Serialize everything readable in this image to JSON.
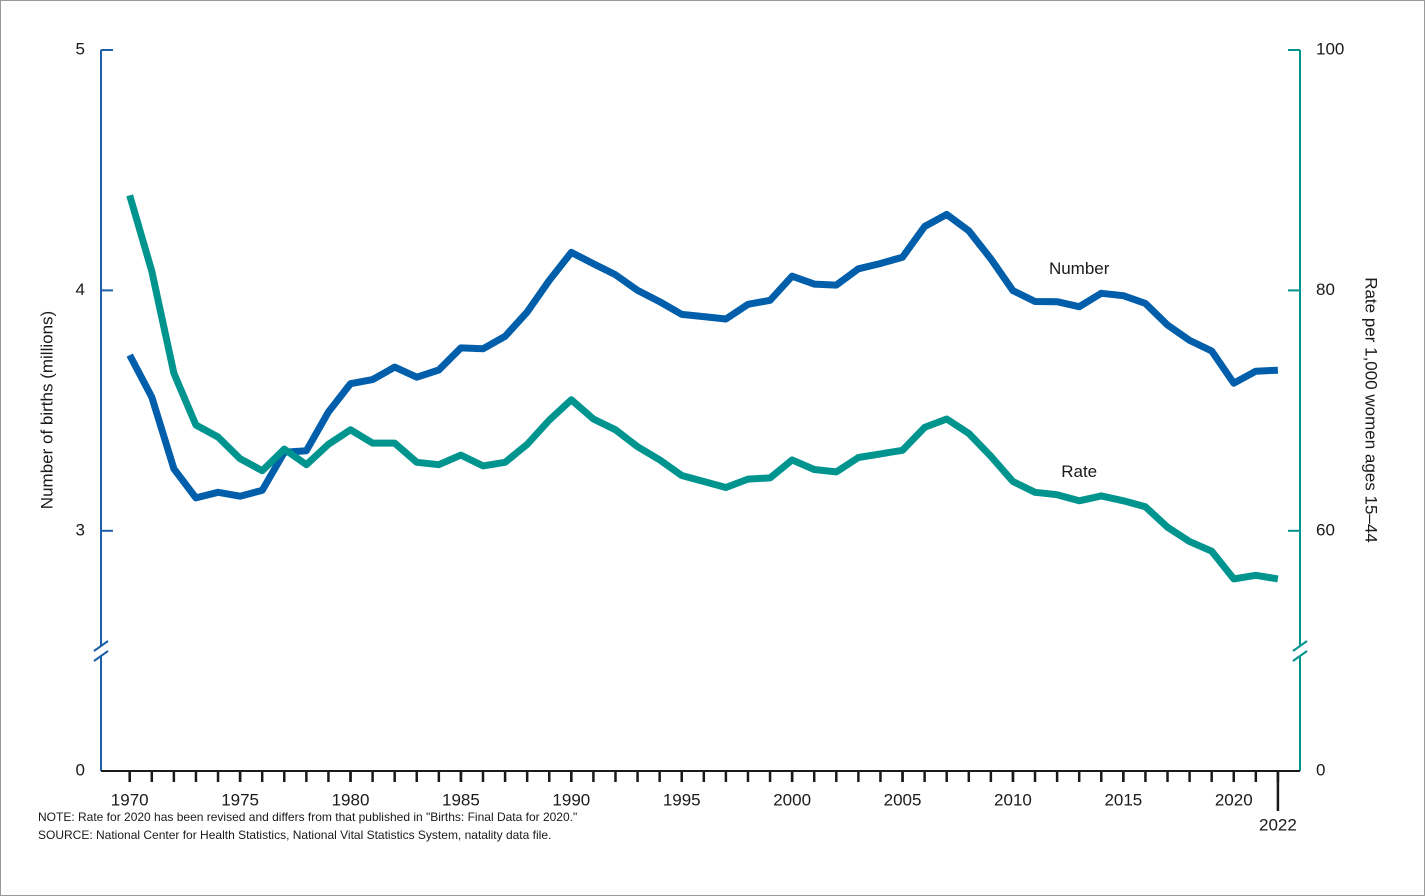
{
  "chart_data": {
    "type": "line",
    "x": [
      1970,
      1971,
      1972,
      1973,
      1974,
      1975,
      1976,
      1977,
      1978,
      1979,
      1980,
      1981,
      1982,
      1983,
      1984,
      1985,
      1986,
      1987,
      1988,
      1989,
      1990,
      1991,
      1992,
      1993,
      1994,
      1995,
      1996,
      1997,
      1998,
      1999,
      2000,
      2001,
      2002,
      2003,
      2004,
      2005,
      2006,
      2007,
      2008,
      2009,
      2010,
      2011,
      2012,
      2013,
      2014,
      2015,
      2016,
      2017,
      2018,
      2019,
      2020,
      2021,
      2022
    ],
    "series": [
      {
        "name": "Number",
        "color": "#005eaa",
        "values": [
          3.731,
          3.556,
          3.258,
          3.137,
          3.16,
          3.144,
          3.168,
          3.327,
          3.333,
          3.494,
          3.612,
          3.629,
          3.681,
          3.639,
          3.669,
          3.761,
          3.757,
          3.809,
          3.91,
          4.041,
          4.158,
          4.111,
          4.065,
          4.0,
          3.953,
          3.9,
          3.891,
          3.881,
          3.942,
          3.959,
          4.059,
          4.026,
          4.022,
          4.09,
          4.112,
          4.138,
          4.266,
          4.316,
          4.248,
          4.131,
          3.999,
          3.954,
          3.953,
          3.932,
          3.988,
          3.978,
          3.946,
          3.856,
          3.792,
          3.748,
          3.614,
          3.664,
          3.668
        ]
      },
      {
        "name": "Rate",
        "color": "#00948f",
        "axis": "y2",
        "values": [
          87.9,
          81.6,
          73.1,
          68.8,
          67.8,
          66.0,
          65.0,
          66.8,
          65.5,
          67.2,
          68.4,
          67.3,
          67.3,
          65.7,
          65.5,
          66.3,
          65.4,
          65.7,
          67.2,
          69.2,
          70.9,
          69.3,
          68.4,
          67.0,
          65.9,
          64.6,
          64.1,
          63.6,
          64.3,
          64.4,
          65.9,
          65.1,
          64.9,
          66.1,
          66.4,
          66.7,
          68.6,
          69.3,
          68.1,
          66.2,
          64.1,
          63.2,
          63.0,
          62.5,
          62.9,
          62.5,
          62.0,
          60.3,
          59.1,
          58.3,
          56.0,
          56.3,
          56.0
        ]
      }
    ],
    "xlim": [
      1968.7,
      2023
    ],
    "xticks": [
      1970,
      1975,
      1980,
      1985,
      1990,
      1995,
      2000,
      2005,
      2010,
      2015,
      2020,
      2022
    ],
    "ylim": [
      0,
      5
    ],
    "yticks": [
      0,
      3,
      4,
      5
    ],
    "y_axis_break": 2.5,
    "y2lim": [
      0,
      100
    ],
    "y2ticks": [
      0,
      60,
      80,
      100
    ],
    "y2_axis_break": 50,
    "ylabel": "Number of births (millions)",
    "y2label": "Rate per 1,000 women ages 15–44",
    "y_axis_color": "#1f5fa8",
    "y2_axis_color": "#00948f",
    "notes": [
      "NOTE: Rate for 2020 has been revised and differs from that published in \"Births: Final Data for 2020.\"",
      "SOURCE: National Center for Health Statistics, National Vital Statistics System, natality data file."
    ]
  }
}
